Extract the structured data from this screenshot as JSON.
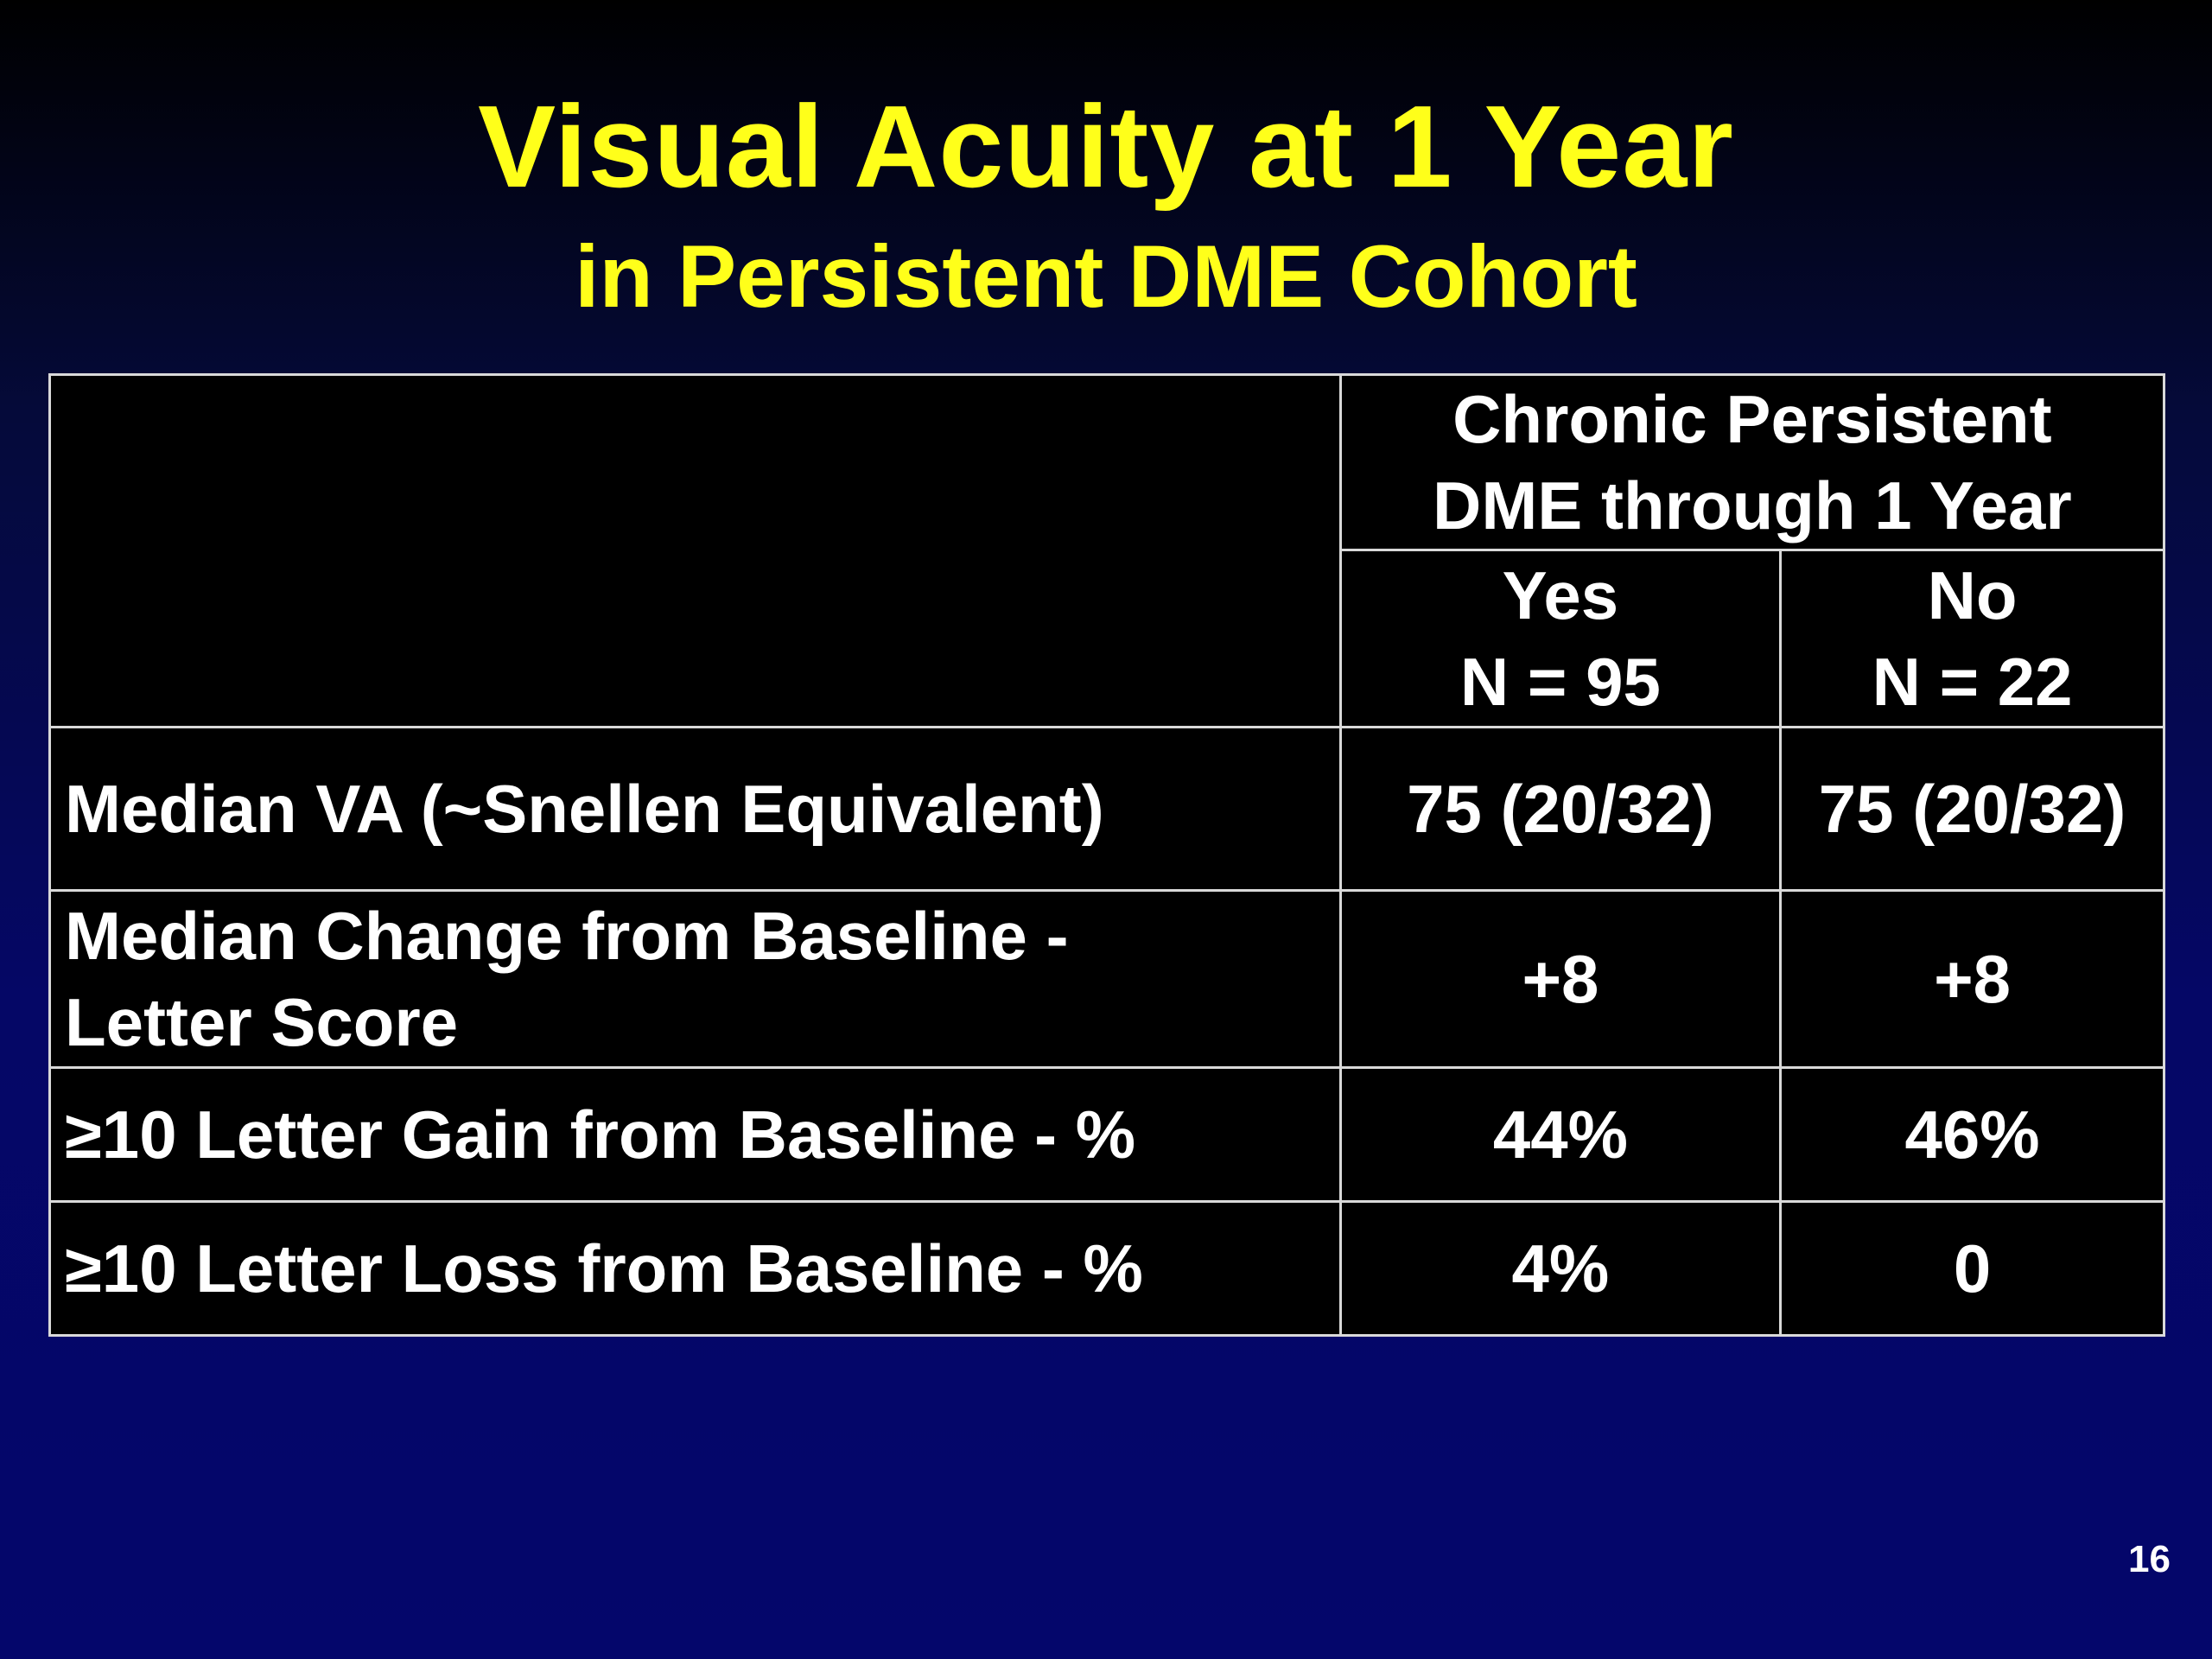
{
  "slide": {
    "title": "Visual Acuity at 1 Year",
    "subtitle": "in Persistent DME Cohort",
    "page_number": "16"
  },
  "table": {
    "group_header": {
      "line1": "Chronic Persistent",
      "line2": "DME through 1 Year"
    },
    "columns": [
      {
        "label": "Yes",
        "n": "N = 95"
      },
      {
        "label": "No",
        "n": "N = 22"
      }
    ],
    "rows": [
      {
        "label_line1": "Median VA (~Snellen Equivalent)",
        "label_line2": "",
        "values": [
          "75 (20/32)",
          "75 (20/32)"
        ]
      },
      {
        "label_line1": "Median Change from Baseline -",
        "label_line2": "Letter Score",
        "values": [
          "+8",
          "+8"
        ]
      },
      {
        "label_line1": "≥10 Letter Gain from Baseline - %",
        "label_line2": "",
        "values": [
          "44%",
          "46%"
        ]
      },
      {
        "label_line1": "≥10 Letter Loss from Baseline - %",
        "label_line2": "",
        "values": [
          "4%",
          "0"
        ]
      }
    ]
  },
  "colors": {
    "title": "#ffff1a",
    "table_background": "#000000",
    "table_text": "#ffffff",
    "slide_background": "#04066b"
  }
}
